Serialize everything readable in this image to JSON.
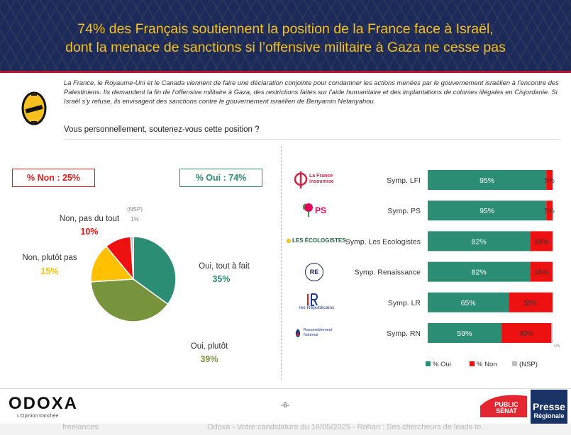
{
  "header": {
    "title_line1": "74% des Français soutiennent la position de la France face à Israël,",
    "title_line2": "dont la menace de sanctions si l’offensive militaire à Gaza ne cesse pas"
  },
  "intro": "La France, le Royaume-Uni et le Canada viennent de faire une déclaration conjointe pour condamner les actions menées par le gouvernement israélien à l’encontre des Palestiniens. Ils demandent la fin de l’offensive militaire à Gaza, des restrictions faites sur l’aide humanitaire et des implantations de colonies illégales en Cisjordanie. Si Israël s’y refuse, ils envisagent des sanctions contre le gouvernement israélien de Benyamin Netanyahou.",
  "question": "Vous personnellement, soutenez-vous cette position ?",
  "summary": {
    "non": "% Non : 25%",
    "oui": "% Oui : 74%"
  },
  "colors": {
    "green": "#2a8d74",
    "olive": "#77933c",
    "yellow": "#ffc000",
    "red": "#ee1111",
    "grey": "#bfbfbf"
  },
  "chart_data": [
    {
      "type": "pie",
      "slices": [
        {
          "label": "Oui, tout à fait",
          "value": 35,
          "display": "35%",
          "color": "#2a8d74"
        },
        {
          "label": "Oui, plutôt",
          "value": 39,
          "display": "39%",
          "color": "#77933c"
        },
        {
          "label": "Non, plutôt pas",
          "value": 15,
          "display": "15%",
          "color": "#ffc000"
        },
        {
          "label": "Non, pas du tout",
          "value": 10,
          "display": "10%",
          "color": "#ee1111"
        },
        {
          "label": "(NSP)",
          "value": 1,
          "display": "1%",
          "color": "#bfbfbf"
        }
      ]
    },
    {
      "type": "bar",
      "stacked": true,
      "orientation": "horizontal",
      "categories": [
        "Symp. LFI",
        "Symp. PS",
        "Symp. Les Ecologistes",
        "Symp. Renaissance",
        "Symp. LR",
        "Symp. RN"
      ],
      "series": [
        {
          "name": "% Oui",
          "color": "#2a8d74",
          "values": [
            95,
            95,
            82,
            82,
            65,
            59
          ]
        },
        {
          "name": "% Non",
          "color": "#ee1111",
          "values": [
            5,
            5,
            18,
            18,
            35,
            40
          ]
        },
        {
          "name": "(NSP)",
          "color": "#bfbfbf",
          "values": [
            0,
            0,
            0,
            0,
            0,
            1
          ]
        }
      ],
      "labels": {
        "oui": [
          "95%",
          "95%",
          "82%",
          "82%",
          "65%",
          "59%"
        ],
        "non": [
          "5%",
          "5%",
          "18%",
          "18%",
          "35%",
          "40%"
        ],
        "nsp": [
          "",
          "",
          "",
          "",
          "",
          "1%"
        ]
      },
      "legend_position": "bottom",
      "xlim": [
        0,
        100
      ]
    }
  ],
  "party_logos": [
    {
      "name": "La France insoumise",
      "text": "La France insoumise",
      "icon": "lfi-logo"
    },
    {
      "name": "PS",
      "text": "PS",
      "icon": "ps-logo"
    },
    {
      "name": "Les Écologistes",
      "text": "LES ÉCOLOGISTES",
      "icon": "ecologistes-logo"
    },
    {
      "name": "Renaissance",
      "text": "RE",
      "icon": "renaissance-logo"
    },
    {
      "name": "Les Républicains",
      "text": "les Républicains",
      "icon": "lr-logo"
    },
    {
      "name": "Rassemblement National",
      "text": "Rassemblement National",
      "icon": "rn-logo"
    }
  ],
  "footer": {
    "brand": "ODOXA",
    "tagline": "L’Opinion tranchée",
    "page": "-6-",
    "logo_public_senat": "PUBLIC SÉNAT",
    "logo_presse_1": "Presse",
    "logo_presse_2": "Régionale"
  },
  "bottom_strip": {
    "left": "freelances",
    "middle": "Odoxa - Votre candidature du 16/05/2025 - Rohan : Ses chercheurs de leads te..."
  }
}
